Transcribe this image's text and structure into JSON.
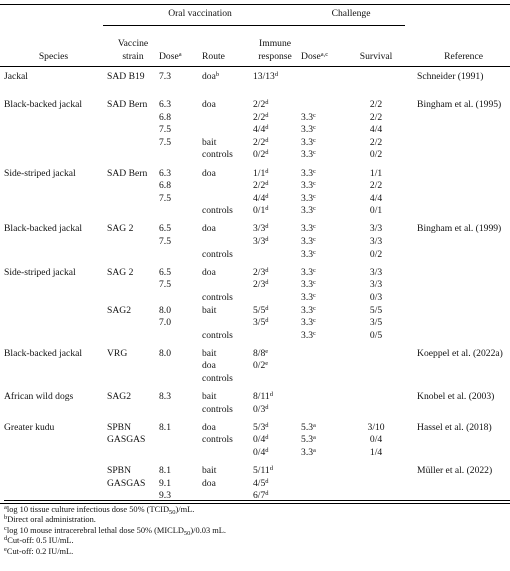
{
  "table": {
    "groups_header": {
      "oral": "Oral vaccination",
      "challenge": "Challenge"
    },
    "columns": [
      "Species",
      "Vaccine strain",
      {
        "text": "Dose",
        "sup": "a"
      },
      "Route",
      "Immune response",
      {
        "text": "Dose",
        "sup": "a,c"
      },
      "Survival",
      "Reference"
    ],
    "groups": [
      {
        "rows": [
          [
            "Jackal",
            "SAD B19",
            "7.3",
            {
              "text": "doa",
              "sup": "b"
            },
            {
              "text": "13/13",
              "sup": "d"
            },
            null,
            null,
            "Schneider (1991)"
          ]
        ]
      },
      {
        "rows": [
          [
            "Black-backed jackal",
            "SAD Bern",
            "6.3",
            "doa",
            {
              "text": "2/2",
              "sup": "d"
            },
            null,
            "2/2",
            "Bingham et al. (1995)"
          ],
          [
            null,
            null,
            "6.8",
            null,
            {
              "text": "2/2",
              "sup": "d"
            },
            {
              "text": "3.3",
              "sup": "c"
            },
            "2/2",
            null
          ],
          [
            null,
            null,
            "7.5",
            null,
            {
              "text": "4/4",
              "sup": "d"
            },
            {
              "text": "3.3",
              "sup": "c"
            },
            "4/4",
            null
          ],
          [
            null,
            null,
            "7.5",
            "bait",
            {
              "text": "2/2",
              "sup": "d"
            },
            {
              "text": "3.3",
              "sup": "c"
            },
            "2/2",
            null
          ],
          [
            null,
            null,
            null,
            "controls",
            {
              "text": "0/2",
              "sup": "d"
            },
            {
              "text": "3.3",
              "sup": "c"
            },
            "0/2",
            null
          ]
        ]
      },
      {
        "rows": [
          [
            "Side-striped jackal",
            "SAD Bern",
            "6.3",
            "doa",
            {
              "text": "1/1",
              "sup": "d"
            },
            {
              "text": "3.3",
              "sup": "c"
            },
            "1/1",
            null
          ],
          [
            null,
            null,
            "6.8",
            null,
            {
              "text": "2/2",
              "sup": "d"
            },
            {
              "text": "3.3",
              "sup": "c"
            },
            "2/2",
            null
          ],
          [
            null,
            null,
            "7.5",
            null,
            {
              "text": "4/4",
              "sup": "d"
            },
            {
              "text": "3.3",
              "sup": "c"
            },
            "4/4",
            null
          ],
          [
            null,
            null,
            null,
            "controls",
            {
              "text": "0/1",
              "sup": "d"
            },
            {
              "text": "3.3",
              "sup": "c"
            },
            "0/1",
            null
          ]
        ]
      },
      {
        "rows": [
          [
            "Black-backed jackal",
            "SAG 2",
            "6.5",
            "doa",
            {
              "text": "3/3",
              "sup": "d"
            },
            {
              "text": "3.3",
              "sup": "c"
            },
            "3/3",
            "Bingham et al. (1999)"
          ],
          [
            null,
            null,
            "7.5",
            null,
            {
              "text": "3/3",
              "sup": "d"
            },
            {
              "text": "3.3",
              "sup": "c"
            },
            "3/3",
            null
          ],
          [
            null,
            null,
            null,
            "controls",
            null,
            {
              "text": "3.3",
              "sup": "c"
            },
            "0/2",
            null
          ]
        ]
      },
      {
        "rows": [
          [
            "Side-striped jackal",
            "SAG 2",
            "6.5",
            "doa",
            {
              "text": "2/3",
              "sup": "d"
            },
            {
              "text": "3.3",
              "sup": "c"
            },
            "3/3",
            null
          ],
          [
            null,
            null,
            "7.5",
            null,
            {
              "text": "2/3",
              "sup": "d"
            },
            {
              "text": "3.3",
              "sup": "c"
            },
            "3/3",
            null
          ],
          [
            null,
            null,
            null,
            "controls",
            null,
            {
              "text": "3.3",
              "sup": "c"
            },
            "0/3",
            null
          ],
          [
            null,
            "SAG2",
            "8.0",
            "bait",
            {
              "text": "5/5",
              "sup": "d"
            },
            {
              "text": "3.3",
              "sup": "c"
            },
            "5/5",
            null
          ],
          [
            null,
            null,
            "7.0",
            null,
            {
              "text": "3/5",
              "sup": "d"
            },
            {
              "text": "3.3",
              "sup": "c"
            },
            "3/5",
            null
          ],
          [
            null,
            null,
            null,
            "controls",
            null,
            {
              "text": "3.3",
              "sup": "c"
            },
            "0/5",
            null
          ]
        ]
      },
      {
        "rows": [
          [
            "Black-backed jackal",
            "VRG",
            "8.0",
            "bait",
            {
              "text": "8/8",
              "sup": "e"
            },
            null,
            null,
            "Koeppel et al. (2022a)"
          ],
          [
            null,
            null,
            null,
            "doa",
            {
              "text": "0/2",
              "sup": "e"
            },
            null,
            null,
            null
          ],
          [
            null,
            null,
            null,
            "controls",
            null,
            null,
            null,
            null
          ]
        ]
      },
      {
        "rows": [
          [
            "African wild dogs",
            "SAG2",
            "8.3",
            "bait",
            {
              "text": "8/11",
              "sup": "d"
            },
            null,
            null,
            "Knobel et al. (2003)"
          ],
          [
            null,
            null,
            null,
            "controls",
            {
              "text": "0/3",
              "sup": "d"
            },
            null,
            null,
            null
          ]
        ]
      },
      {
        "rows": [
          [
            "Greater kudu",
            "SPBN",
            "8.1",
            "doa",
            {
              "text": "5/3",
              "sup": "d"
            },
            {
              "text": "5.3",
              "sup": "a"
            },
            "3/10",
            "Hassel et al. (2018)"
          ],
          [
            null,
            "GASGAS",
            null,
            "controls",
            {
              "text": "0/4",
              "sup": "d"
            },
            {
              "text": "5.3",
              "sup": "a"
            },
            "0/4",
            null
          ],
          [
            null,
            null,
            null,
            null,
            {
              "text": "0/4",
              "sup": "d"
            },
            {
              "text": "3.3",
              "sup": "a"
            },
            "1/4",
            null
          ]
        ]
      },
      {
        "rows": [
          [
            null,
            "SPBN",
            "8.1",
            "bait",
            {
              "text": "5/11",
              "sup": "d"
            },
            null,
            null,
            "Müller et al. (2022)"
          ],
          [
            null,
            "GASGAS",
            "9.1",
            "doa",
            {
              "text": "4/5",
              "sup": "d"
            },
            null,
            null,
            null
          ],
          [
            null,
            null,
            "9.3",
            null,
            {
              "text": "6/7",
              "sup": "d"
            },
            null,
            null,
            null
          ]
        ]
      }
    ]
  },
  "footnotes": [
    {
      "mark": "a",
      "text": "log 10 tissue culture infectious dose 50% (TCID",
      "sub": "50",
      "tail": ")/mL."
    },
    {
      "mark": "b",
      "text": "Direct oral administration."
    },
    {
      "mark": "c",
      "text": "log 10 mouse intracerebral lethal dose 50% (MICLD",
      "sub": "50",
      "tail": ")/0.03 mL."
    },
    {
      "mark": "d",
      "text": "Cut-off: 0.5 IU/mL."
    },
    {
      "mark": "e",
      "text": "Cut-off: 0.2 IU/mL."
    }
  ]
}
